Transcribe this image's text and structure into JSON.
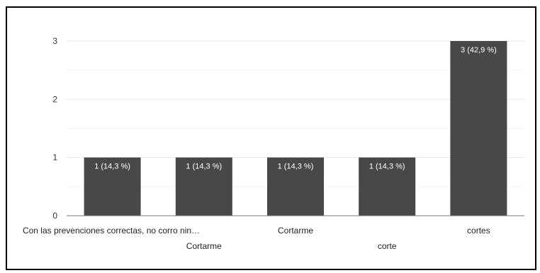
{
  "chart_data": {
    "type": "bar",
    "categories": [
      "Con las prevenciones correctas, no corro nin…",
      "Cortarme",
      "Cortarme",
      "corte",
      "cortes"
    ],
    "values": [
      1,
      1,
      1,
      1,
      3
    ],
    "data_labels": [
      "1 (14,3 %)",
      "1 (14,3 %)",
      "1 (14,3 %)",
      "1 (14,3 %)",
      "3 (42,9 %)"
    ],
    "yticks": [
      "0",
      "1",
      "2",
      "3"
    ],
    "ylim": [
      0,
      3
    ],
    "grid": true,
    "bar_color": "#484848",
    "gridline_color": "#e6e6e6",
    "minor_gridline_color": "#f3f3f3",
    "title": "",
    "xlabel": "",
    "ylabel": ""
  }
}
